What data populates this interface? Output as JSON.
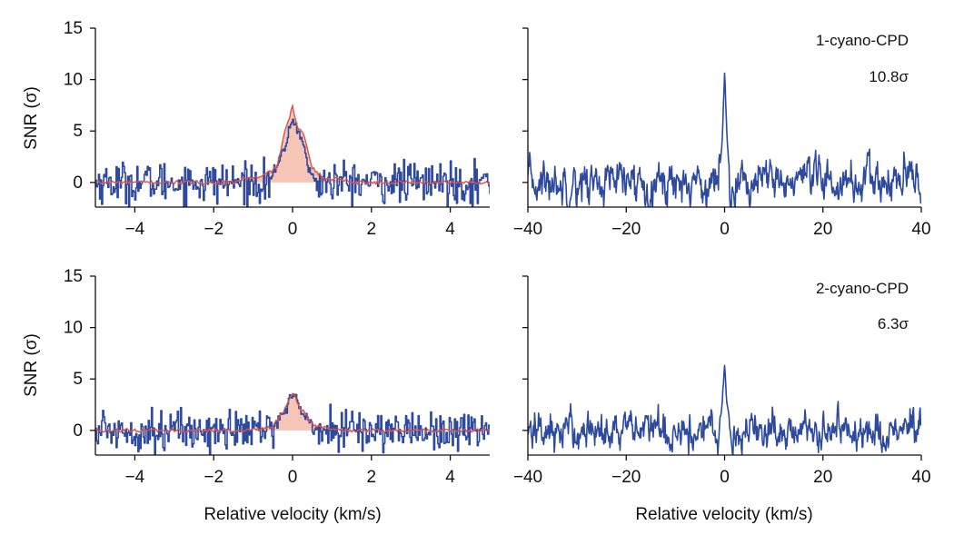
{
  "figure": {
    "colors": {
      "spectrum": "#2e4a9e",
      "model": "#d9534f",
      "fill": "#f5bfae",
      "axis": "#111111"
    },
    "panel_labels": {
      "top": "1-cyano-CPD",
      "bottom": "2-cyano-CPD"
    },
    "significance": {
      "top": "10.8σ",
      "bottom": "6.3σ"
    },
    "ylabel": "SNR (σ)",
    "xlabel": "Relative velocity (km/s)"
  },
  "chart_data": [
    {
      "type": "line",
      "panel": "top-left",
      "xlabel": "",
      "ylabel": "SNR (σ)",
      "xlim": [
        -5,
        5
      ],
      "ylim": [
        -2.4,
        15
      ],
      "xticks": [
        -4,
        -2,
        0,
        2,
        4
      ],
      "yticks": [
        0,
        5,
        10,
        15
      ],
      "series": [
        {
          "style": "step",
          "color": "#2e4a9e",
          "noise_std": 1.0,
          "x": [
            -0.6,
            -0.4,
            -0.2,
            -0.1,
            0.0,
            0.1,
            0.2,
            0.3,
            0.4,
            0.6
          ],
          "y": [
            0.3,
            1.5,
            3.5,
            5.0,
            6.2,
            5.2,
            4.6,
            3.0,
            1.2,
            0.0
          ]
        },
        {
          "style": "line",
          "color": "#d9534f",
          "x": [
            -5,
            -1.5,
            -1.2,
            -0.8,
            -0.4,
            -0.2,
            0.0,
            0.1,
            0.3,
            0.5,
            0.8,
            1.2,
            1.5,
            5
          ],
          "y": [
            0,
            0,
            0.4,
            0.5,
            1.5,
            4.8,
            7.4,
            5.5,
            4.5,
            1.5,
            0.3,
            0.4,
            0,
            0
          ]
        }
      ]
    },
    {
      "type": "line",
      "panel": "top-right",
      "xlabel": "",
      "xlim": [
        -40,
        40
      ],
      "ylim": [
        -2.4,
        15
      ],
      "xticks": [
        -40,
        -20,
        0,
        20,
        40
      ],
      "yticks": [
        0,
        5,
        10,
        15
      ],
      "series": [
        {
          "style": "line",
          "color": "#2e4a9e",
          "noise_std": 1.1,
          "x": [
            -1.0,
            -0.5,
            0.0,
            0.5,
            1.0
          ],
          "y": [
            1.5,
            4.0,
            10.8,
            4.0,
            1.5
          ]
        }
      ]
    },
    {
      "type": "line",
      "panel": "bottom-left",
      "xlabel": "Relative velocity (km/s)",
      "ylabel": "SNR (σ)",
      "xlim": [
        -5,
        5
      ],
      "ylim": [
        -2.4,
        15
      ],
      "xticks": [
        -4,
        -2,
        0,
        2,
        4
      ],
      "yticks": [
        0,
        5,
        10,
        15
      ],
      "series": [
        {
          "style": "step",
          "color": "#2e4a9e",
          "noise_std": 1.0,
          "x": [
            -0.5,
            -0.2,
            0.0,
            0.2,
            0.5
          ],
          "y": [
            0.5,
            2.0,
            3.6,
            2.0,
            0.5
          ]
        },
        {
          "style": "line",
          "color": "#d9534f",
          "x": [
            -5,
            -1.0,
            -0.5,
            -0.2,
            0.0,
            0.2,
            0.5,
            1.0,
            5
          ],
          "y": [
            0,
            0,
            0.4,
            2.0,
            3.7,
            2.2,
            0.6,
            0,
            0
          ]
        }
      ]
    },
    {
      "type": "line",
      "panel": "bottom-right",
      "xlabel": "Relative velocity (km/s)",
      "xlim": [
        -40,
        40
      ],
      "ylim": [
        -2.4,
        15
      ],
      "xticks": [
        -40,
        -20,
        0,
        20,
        40
      ],
      "yticks": [
        0,
        5,
        10,
        15
      ],
      "series": [
        {
          "style": "line",
          "color": "#2e4a9e",
          "noise_std": 1.0,
          "x": [
            -1.0,
            -0.5,
            0.0,
            0.5,
            1.0
          ],
          "y": [
            1.0,
            2.5,
            6.3,
            2.5,
            1.0
          ]
        }
      ]
    }
  ]
}
